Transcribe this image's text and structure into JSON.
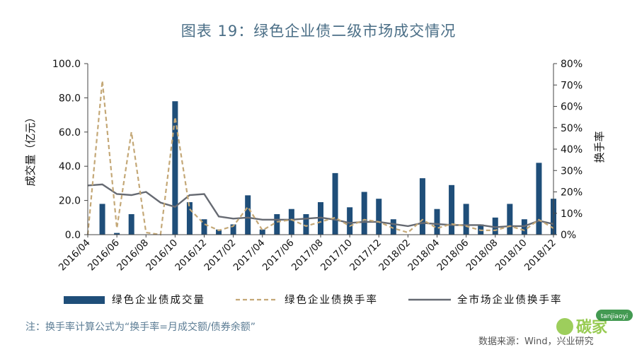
{
  "title": "图表 19：绿色企业债二级市场成交情况",
  "note": "注：换手率计算公式为“换手率=月成交额/债券余额”",
  "source": "数据来源：Wind，兴业研究",
  "watermark": {
    "text": "碳家",
    "sub": "tanjiaoyi"
  },
  "colors": {
    "bar": "#1f4e79",
    "green_rate": "#c4a877",
    "market_rate": "#666a72"
  },
  "chart_data": {
    "type": "bar",
    "title": "图表 19：绿色企业债二级市场成交情况",
    "ylabel": "成交量（亿元）",
    "y2label": "换手率",
    "ylim": [
      0,
      100
    ],
    "y2lim": [
      0,
      80
    ],
    "yticks": [
      "0.0",
      "20.0",
      "40.0",
      "60.0",
      "80.0",
      "100.0"
    ],
    "y2ticks": [
      "0%",
      "10%",
      "20%",
      "30%",
      "40%",
      "50%",
      "60%",
      "70%",
      "80%"
    ],
    "xticks": [
      "2016/04",
      "2016/06",
      "2016/08",
      "2016/10",
      "2016/12",
      "2017/02",
      "2017/04",
      "2017/06",
      "2017/08",
      "2017/10",
      "2017/12",
      "2018/02",
      "2018/04",
      "2018/06",
      "2018/08",
      "2018/10",
      "2018/12"
    ],
    "categories": [
      "2016/04",
      "2016/05",
      "2016/06",
      "2016/07",
      "2016/08",
      "2016/09",
      "2016/10",
      "2016/11",
      "2016/12",
      "2017/01",
      "2017/02",
      "2017/03",
      "2017/04",
      "2017/05",
      "2017/06",
      "2017/07",
      "2017/08",
      "2017/09",
      "2017/10",
      "2017/11",
      "2017/12",
      "2018/01",
      "2018/02",
      "2018/03",
      "2018/04",
      "2018/05",
      "2018/06",
      "2018/07",
      "2018/08",
      "2018/09",
      "2018/10",
      "2018/11",
      "2018/12"
    ],
    "series": [
      {
        "name": "绿色企业债成交量",
        "type": "bar",
        "axis": "left",
        "values": [
          0,
          18,
          1,
          12,
          0,
          0,
          78,
          19,
          9,
          3,
          6,
          23,
          3,
          12,
          15,
          12,
          19,
          36,
          16,
          25,
          21,
          9,
          0,
          33,
          15,
          29,
          18,
          6,
          10,
          18,
          9,
          42,
          21
        ]
      },
      {
        "name": "绿色企业债换手率",
        "type": "line",
        "style": "dashed",
        "axis": "right",
        "values": [
          0.0,
          72.0,
          3.0,
          48.0,
          1.0,
          0.0,
          55.0,
          12.0,
          5.0,
          2.0,
          4.0,
          13.0,
          2.0,
          6.0,
          7.0,
          4.0,
          6.0,
          8.0,
          4.0,
          7.0,
          6.0,
          3.0,
          1.0,
          7.0,
          3.0,
          5.0,
          4.0,
          2.0,
          2.0,
          4.0,
          2.0,
          7.0,
          3.0
        ]
      },
      {
        "name": "全市场企业债换手率",
        "type": "line",
        "style": "solid",
        "axis": "right",
        "values": [
          23.0,
          23.5,
          19.0,
          18.5,
          20.0,
          15.0,
          13.0,
          18.5,
          19.0,
          8.5,
          7.5,
          8.0,
          7.0,
          7.0,
          7.0,
          7.5,
          8.0,
          7.0,
          5.5,
          6.0,
          6.0,
          5.0,
          4.0,
          5.5,
          5.0,
          4.5,
          4.5,
          4.5,
          3.5,
          4.0,
          4.0,
          6.5,
          5.0
        ]
      }
    ],
    "grid": false,
    "legend_position": "bottom"
  }
}
